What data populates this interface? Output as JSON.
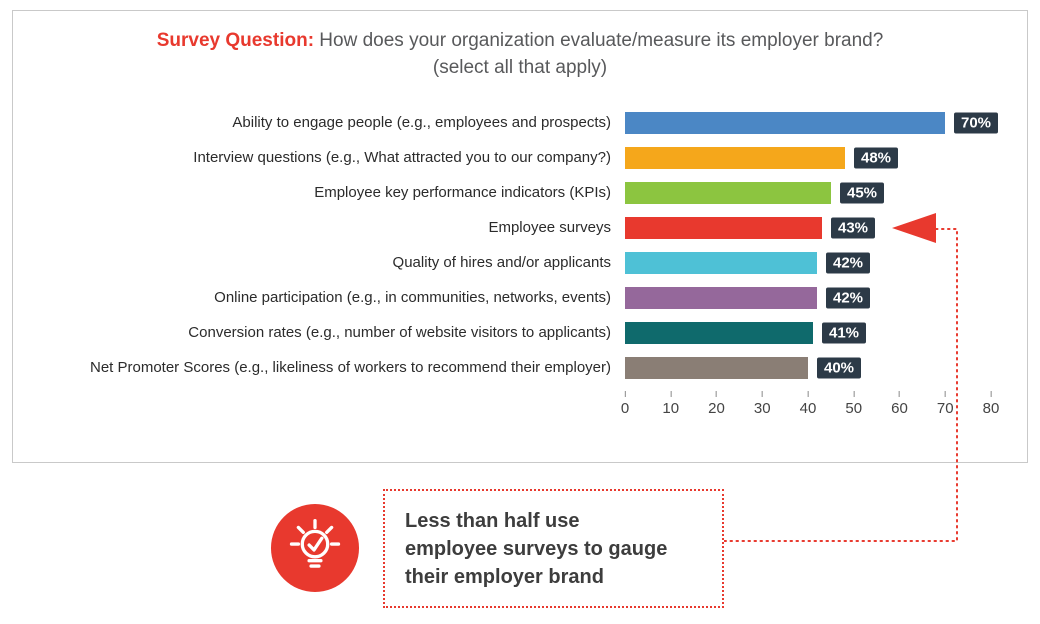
{
  "header": {
    "prefix": "Survey Question:",
    "question": " How does your organization evaluate/measure its employer brand?",
    "line2": "(select all that apply)"
  },
  "chart_data": {
    "type": "bar",
    "orientation": "horizontal",
    "title": "Survey Question: How does your organization evaluate/measure its employer brand? (select all that apply)",
    "categories": [
      "Ability to engage people (e.g., employees and prospects)",
      "Interview questions (e.g., What attracted you to our company?)",
      "Employee key performance indicators (KPIs)",
      "Employee surveys",
      "Quality of hires and/or applicants",
      "Online participation (e.g., in communities, networks, events)",
      "Conversion rates (e.g., number of website visitors to applicants)",
      "Net Promoter Scores (e.g., likeliness of workers to recommend their employer)"
    ],
    "values": [
      70,
      48,
      45,
      43,
      42,
      42,
      41,
      40
    ],
    "value_labels": [
      "70%",
      "48%",
      "45%",
      "43%",
      "42%",
      "42%",
      "41%",
      "40%"
    ],
    "bar_colors": [
      "#4b87c5",
      "#f5a71b",
      "#8cc540",
      "#e8392e",
      "#4ec1d6",
      "#95689b",
      "#0f6a6c",
      "#8a7e75"
    ],
    "xlabel": "",
    "ylabel": "",
    "xlim": [
      0,
      80
    ],
    "x_ticks": [
      0,
      10,
      20,
      30,
      40,
      50,
      60,
      70,
      80
    ],
    "grid": false,
    "legend": false,
    "highlight_index": 3
  },
  "callout": {
    "lines": [
      "Less than half use",
      "employee surveys to gauge",
      "their employer brand"
    ]
  },
  "colors": {
    "accent_red": "#e8392e",
    "badge_bg": "#2c3a47",
    "title_gray": "#58595b",
    "panel_border": "#c9c9c9"
  }
}
